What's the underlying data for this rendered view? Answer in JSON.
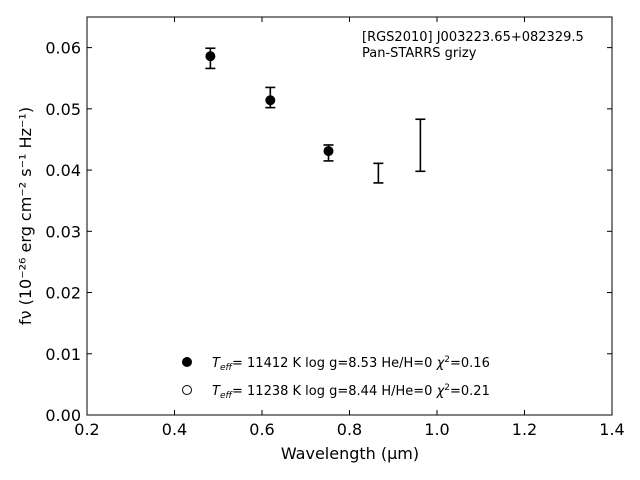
{
  "chart_data": {
    "type": "scatter",
    "object_label": "[RGS2010] J003223.65+082329.5",
    "filter_label": "Pan-STARRS grizy",
    "xlabel": "Wavelength (μm)",
    "ylabel": "fν (10⁻²⁶ erg cm⁻² s⁻¹ Hz⁻¹)",
    "xlim": [
      0.2,
      1.4
    ],
    "ylim": [
      0.0,
      0.065
    ],
    "x_ticks": [
      "0.2",
      "0.4",
      "0.6",
      "0.8",
      "1.0",
      "1.2",
      "1.4"
    ],
    "y_ticks": [
      "0.00",
      "0.01",
      "0.02",
      "0.03",
      "0.04",
      "0.05",
      "0.06"
    ],
    "observed": [
      {
        "band": "g",
        "x": 0.482,
        "y": 0.0583,
        "yerr_low": 0.0566,
        "yerr_high": 0.0599
      },
      {
        "band": "r",
        "x": 0.619,
        "y": 0.0518,
        "yerr_low": 0.0502,
        "yerr_high": 0.0535
      },
      {
        "band": "i",
        "x": 0.752,
        "y": 0.0428,
        "yerr_low": 0.0415,
        "yerr_high": 0.0441
      },
      {
        "band": "z",
        "x": 0.866,
        "y": 0.0395,
        "yerr_low": 0.0379,
        "yerr_high": 0.0411
      },
      {
        "band": "y",
        "x": 0.962,
        "y": 0.0411,
        "yerr_low": 0.0398,
        "yerr_high": 0.0483
      }
    ],
    "models": [
      {
        "marker": "filled",
        "x": [
          0.482,
          0.619,
          0.752
        ],
        "y": [
          0.0586,
          0.0514,
          0.0431
        ]
      }
    ],
    "legend": [
      {
        "marker": "filled",
        "teff": "11412",
        "logg": "8.53",
        "composition": "He/H=0",
        "chi2": "0.16"
      },
      {
        "marker": "open",
        "teff": "11238",
        "logg": "8.44",
        "composition": "H/He=0",
        "chi2": "0.21"
      }
    ],
    "legend_text": {
      "teff_prefix": "T",
      "teff_sub": "eff",
      "logg_prefix": "log g=",
      "chi_prefix": "χ",
      "chi_sup": "2",
      "kelvin": "K"
    }
  }
}
